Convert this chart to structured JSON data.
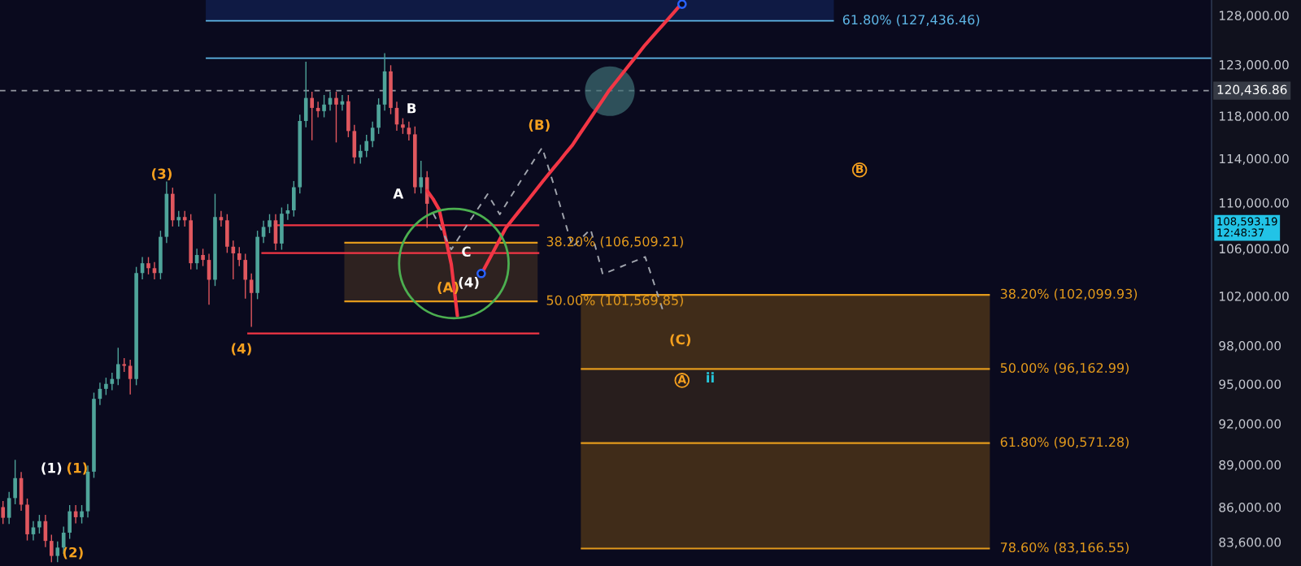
{
  "chart_data": {
    "type": "candlestick",
    "categories": [
      null,
      null,
      null,
      null,
      null,
      null,
      null,
      null,
      null,
      null,
      null,
      null,
      null,
      null,
      null,
      null,
      null,
      null,
      null,
      null,
      null,
      null,
      null,
      null,
      null,
      null,
      null,
      null,
      null,
      null,
      null,
      null,
      null,
      null,
      null,
      null,
      null,
      null,
      null,
      null,
      null,
      null,
      null,
      null,
      null,
      null,
      null,
      null,
      null,
      null,
      null,
      null,
      null,
      null,
      null,
      null,
      null,
      null,
      null,
      null,
      null,
      null,
      null,
      null,
      null,
      null,
      null,
      null,
      null,
      null,
      null,
      null,
      null,
      null,
      null,
      null,
      null,
      null,
      null,
      null,
      null,
      null,
      null,
      null,
      null,
      null,
      null,
      null,
      null,
      null,
      null,
      null,
      null,
      null,
      null,
      null,
      null,
      null,
      null,
      null,
      null,
      null,
      null,
      null,
      null,
      null,
      null,
      null,
      null,
      null,
      null,
      null,
      null,
      null,
      null,
      null,
      null,
      null,
      null,
      null,
      null,
      null,
      null,
      null,
      null,
      null,
      null,
      null,
      null,
      null,
      null,
      null,
      null,
      null,
      null,
      null,
      null,
      null,
      null,
      null,
      null,
      null,
      null,
      null,
      null,
      null,
      null,
      null,
      null,
      null,
      null,
      null,
      null,
      null,
      null,
      null,
      null,
      null,
      null,
      null,
      null,
      null,
      null,
      null,
      null,
      null,
      null,
      null,
      null,
      null,
      null,
      null,
      null,
      null,
      null,
      null,
      null,
      null,
      null,
      null,
      null,
      null,
      null,
      null,
      null,
      null,
      null,
      null,
      null,
      null,
      null,
      null,
      null,
      null,
      null,
      null,
      null,
      null,
      null,
      null
    ],
    "ohlc": [
      [
        86000,
        86430,
        84830,
        85260
      ],
      [
        85260,
        87060,
        84830,
        86630
      ],
      [
        86630,
        89350,
        86200,
        88040
      ],
      [
        88040,
        88480,
        85740,
        86170
      ],
      [
        86170,
        86600,
        83710,
        84130
      ],
      [
        84130,
        85030,
        83710,
        84600
      ],
      [
        84600,
        85460,
        84180,
        85030
      ],
      [
        85030,
        85460,
        83260,
        83680
      ],
      [
        83680,
        84100,
        82250,
        82670
      ],
      [
        82670,
        83650,
        82250,
        83230
      ],
      [
        83230,
        84660,
        82810,
        84240
      ],
      [
        84240,
        86140,
        83820,
        85710
      ],
      [
        85710,
        86140,
        84870,
        85300
      ],
      [
        85300,
        86140,
        84870,
        85710
      ],
      [
        85710,
        88940,
        85280,
        88500
      ],
      [
        88500,
        94340,
        88060,
        93870
      ],
      [
        93870,
        95100,
        93400,
        94630
      ],
      [
        94630,
        95490,
        94160,
        95010
      ],
      [
        95010,
        95870,
        94530,
        95390
      ],
      [
        95390,
        97830,
        94910,
        96540
      ],
      [
        96540,
        97020,
        95930,
        96410
      ],
      [
        96410,
        96890,
        94200,
        95390
      ],
      [
        95390,
        104440,
        94910,
        103920
      ],
      [
        103920,
        105270,
        103400,
        104750
      ],
      [
        104750,
        105270,
        103810,
        104330
      ],
      [
        104330,
        104850,
        103400,
        103920
      ],
      [
        103920,
        107540,
        103400,
        107010
      ],
      [
        107010,
        111900,
        106480,
        110800
      ],
      [
        110800,
        111350,
        107910,
        108450
      ],
      [
        108450,
        109280,
        107910,
        108740
      ],
      [
        108740,
        109280,
        107910,
        108450
      ],
      [
        108450,
        108990,
        104230,
        104750
      ],
      [
        104750,
        105980,
        104230,
        105450
      ],
      [
        105450,
        105980,
        104510,
        105030
      ],
      [
        105030,
        105560,
        101300,
        103360
      ],
      [
        103360,
        110800,
        102840,
        108740
      ],
      [
        108740,
        109280,
        107910,
        108450
      ],
      [
        108450,
        108990,
        105630,
        106160
      ],
      [
        106160,
        106690,
        103400,
        105590
      ],
      [
        105590,
        106120,
        104510,
        105030
      ],
      [
        105030,
        105560,
        101800,
        103360
      ],
      [
        103360,
        103880,
        99500,
        102260
      ],
      [
        102260,
        107540,
        101750,
        107010
      ],
      [
        107010,
        108410,
        106480,
        107870
      ],
      [
        107870,
        108990,
        107330,
        108450
      ],
      [
        108450,
        108990,
        105870,
        106430
      ],
      [
        106430,
        109580,
        105900,
        109030
      ],
      [
        109030,
        109880,
        108480,
        109330
      ],
      [
        109330,
        111950,
        108780,
        111390
      ],
      [
        111390,
        118110,
        110830,
        117520
      ],
      [
        117520,
        123300,
        116930,
        119730
      ],
      [
        119730,
        120330,
        115700,
        118770
      ],
      [
        118770,
        119360,
        117870,
        118460
      ],
      [
        118460,
        120020,
        117870,
        119090
      ],
      [
        119090,
        120330,
        118500,
        119730
      ],
      [
        119730,
        120330,
        115500,
        119090
      ],
      [
        119090,
        120010,
        118500,
        119410
      ],
      [
        119410,
        120010,
        115990,
        116570
      ],
      [
        116570,
        117150,
        113540,
        114110
      ],
      [
        114110,
        115280,
        113540,
        114710
      ],
      [
        114710,
        116210,
        114140,
        115630
      ],
      [
        115630,
        117470,
        115050,
        116880
      ],
      [
        116880,
        119690,
        116300,
        119090
      ],
      [
        119090,
        124140,
        118500,
        122330
      ],
      [
        122330,
        122940,
        118170,
        118770
      ],
      [
        118770,
        119360,
        116600,
        117190
      ],
      [
        117190,
        117780,
        116300,
        116880
      ],
      [
        116880,
        117470,
        115680,
        116260
      ],
      [
        116260,
        117000,
        110830,
        111390
      ],
      [
        111390,
        113800,
        110830,
        112290
      ],
      [
        112290,
        112850,
        107800,
        109910
      ],
      null,
      null,
      null,
      null,
      null,
      null,
      null,
      null,
      null,
      null,
      null,
      null,
      null,
      null,
      null,
      null,
      null,
      null,
      null,
      null,
      null,
      null,
      null,
      null,
      null,
      null,
      null,
      null,
      null,
      null,
      null,
      null,
      null,
      null,
      null,
      null,
      null,
      null,
      null,
      null,
      null,
      null,
      null,
      null,
      null,
      null,
      null,
      null,
      null,
      null,
      null,
      null,
      null,
      null,
      null,
      null,
      null,
      null,
      null,
      null,
      null,
      null,
      null,
      null,
      null,
      null,
      null,
      null,
      null,
      null,
      null,
      null,
      null,
      null,
      null,
      null,
      null,
      null,
      null,
      null,
      null,
      null,
      null,
      null,
      null,
      null,
      null,
      null,
      null,
      null,
      null,
      null,
      null,
      null,
      null,
      null,
      null,
      null,
      null,
      null,
      null,
      null,
      null,
      null,
      null,
      null,
      null,
      null,
      null,
      null,
      null,
      null,
      null,
      null,
      null,
      null,
      null,
      null,
      null,
      null,
      null,
      null,
      null,
      null,
      null,
      null,
      null,
      null,
      null
    ],
    "colors": [
      "#e0575e",
      "#4fa49a",
      "#4fa49a",
      "#e0575e",
      "#e0575e",
      "#4fa49a",
      "#4fa49a",
      "#e0575e",
      "#e0575e",
      "#4fa49a",
      "#4fa49a",
      "#4fa49a",
      "#e0575e",
      "#4fa49a",
      "#4fa49a",
      "#4fa49a",
      "#4fa49a",
      "#4fa49a",
      "#4fa49a",
      "#4fa49a",
      "#e0575e",
      "#e0575e",
      "#4fa49a",
      "#4fa49a",
      "#e0575e",
      "#e0575e",
      "#4fa49a",
      "#4fa49a",
      "#e0575e",
      "#4fa49a",
      "#e0575e",
      "#e0575e",
      "#4fa49a",
      "#e0575e",
      "#e0575e",
      "#4fa49a",
      "#e0575e",
      "#e0575e",
      "#e0575e",
      "#e0575e",
      "#e0575e",
      "#e0575e",
      "#4fa49a",
      "#4fa49a",
      "#4fa49a",
      "#e0575e",
      "#4fa49a",
      "#4fa49a",
      "#4fa49a",
      "#4fa49a",
      "#4fa49a",
      "#e0575e",
      "#e0575e",
      "#4fa49a",
      "#4fa49a",
      "#e0575e",
      "#4fa49a",
      "#e0575e",
      "#e0575e",
      "#4fa49a",
      "#4fa49a",
      "#4fa49a",
      "#4fa49a",
      "#4fa49a",
      "#e0575e",
      "#e0575e",
      "#e0575e",
      "#e0575e",
      "#e0575e",
      "#4fa49a",
      "#e0575e",
      null,
      null,
      null,
      null,
      null,
      null,
      null,
      null,
      null,
      null,
      null,
      null,
      null,
      null,
      null,
      null,
      null,
      null,
      null,
      null,
      null,
      null,
      null,
      null,
      null,
      null,
      null,
      null,
      null,
      null,
      null,
      null,
      null,
      null,
      null,
      null,
      null,
      null,
      null,
      null,
      null,
      null,
      null,
      null,
      null,
      null,
      null,
      null,
      null,
      null,
      null,
      null,
      null,
      null,
      null,
      null,
      null,
      null,
      null,
      null,
      null,
      null,
      null,
      null,
      null,
      null,
      null,
      null,
      null,
      null,
      null,
      null,
      null,
      null,
      null,
      null,
      null,
      null,
      null,
      null,
      null,
      null,
      null,
      null,
      null,
      null,
      null,
      null,
      null,
      null,
      null,
      null,
      null,
      null,
      null,
      null,
      null,
      null,
      null,
      null,
      null,
      null,
      null,
      null,
      null,
      null,
      null,
      null,
      null,
      null,
      null,
      null,
      null,
      null,
      null,
      null,
      null,
      null,
      null,
      null,
      null,
      null,
      null,
      null,
      null,
      null,
      null,
      null,
      null
    ],
    "series": [
      {
        "type": "line",
        "color": "#f23645",
        "line_style": "solid",
        "values": [
          null,
          null,
          null,
          null,
          null,
          null,
          null,
          null,
          null,
          null,
          null,
          null,
          null,
          null,
          null,
          null,
          null,
          null,
          null,
          null,
          null,
          null,
          null,
          null,
          null,
          null,
          null,
          null,
          null,
          null,
          null,
          null,
          null,
          null,
          null,
          null,
          null,
          null,
          null,
          null,
          null,
          null,
          null,
          null,
          null,
          null,
          null,
          null,
          null,
          null,
          null,
          null,
          null,
          null,
          null,
          null,
          null,
          null,
          null,
          null,
          null,
          null,
          null,
          null,
          null,
          null,
          null,
          null,
          null,
          null,
          111090,
          110330,
          109390,
          107060,
          104660,
          100400,
          null,
          null,
          null,
          null,
          null,
          null,
          null,
          null,
          null,
          null,
          null,
          null,
          null,
          null,
          null,
          null,
          null,
          null,
          null,
          null,
          null,
          null,
          null,
          null,
          null,
          null,
          null,
          null,
          null,
          null,
          null,
          null,
          null,
          null,
          null,
          null,
          null,
          null,
          null,
          null,
          null,
          null,
          null,
          null,
          null,
          null,
          null,
          null,
          null,
          null,
          null,
          null,
          null,
          null,
          null,
          null,
          null,
          null,
          null,
          null,
          null,
          null,
          null,
          null,
          null,
          null,
          null,
          null,
          null,
          null,
          null,
          null,
          null,
          null,
          null,
          null,
          null,
          null,
          null,
          null,
          null,
          null,
          null,
          null,
          null,
          null,
          null,
          null,
          null,
          null,
          null,
          null,
          null,
          null,
          null,
          null,
          null,
          null,
          null,
          null,
          null,
          null,
          null,
          null,
          null,
          null,
          null,
          null,
          null,
          null,
          null,
          null,
          null,
          null,
          null,
          null,
          null,
          null,
          null,
          null,
          null,
          null,
          null,
          null
        ]
      },
      {
        "type": "line",
        "color": "#f23645",
        "line_style": "solid",
        "values": [
          null,
          null,
          null,
          null,
          null,
          null,
          null,
          null,
          null,
          null,
          null,
          null,
          null,
          null,
          null,
          null,
          null,
          null,
          null,
          null,
          null,
          null,
          null,
          null,
          null,
          null,
          null,
          null,
          null,
          null,
          null,
          null,
          null,
          null,
          null,
          null,
          null,
          null,
          null,
          null,
          null,
          null,
          null,
          null,
          null,
          null,
          null,
          null,
          null,
          null,
          null,
          null,
          null,
          null,
          null,
          null,
          null,
          null,
          null,
          null,
          null,
          null,
          null,
          null,
          null,
          null,
          null,
          null,
          null,
          null,
          null,
          null,
          null,
          null,
          null,
          null,
          null,
          null,
          null,
          103870,
          104830,
          105800,
          106790,
          107780,
          108450,
          109120,
          109790,
          110470,
          111160,
          111850,
          112530,
          113210,
          113870,
          114580,
          115260,
          116120,
          116960,
          117810,
          118680,
          119530,
          120420,
          121170,
          121920,
          122680,
          123440,
          124210,
          124980,
          125670,
          126370,
          127070,
          127770,
          128490,
          129220,
          null,
          null,
          null,
          null,
          null,
          null,
          null,
          null,
          null,
          null,
          null,
          null,
          null,
          null,
          null,
          null,
          null,
          null,
          null,
          null,
          null,
          null,
          null,
          null,
          null,
          null,
          null,
          null,
          null,
          null,
          null,
          null,
          null,
          null,
          null,
          null,
          null,
          null,
          null,
          null,
          null,
          null,
          null,
          null,
          null,
          null,
          null,
          null,
          null,
          null,
          null,
          null,
          null,
          null,
          null,
          null,
          null,
          null,
          null,
          null,
          null,
          null,
          null,
          null,
          null,
          null,
          null,
          null,
          null,
          null,
          null,
          null,
          null,
          null,
          null,
          null,
          null,
          null,
          null,
          null,
          null,
          null,
          null,
          null,
          null,
          null,
          null
        ]
      },
      {
        "type": "line",
        "color": "#a0a4ad",
        "line_style": "dashed",
        "values": [
          null,
          null,
          null,
          null,
          null,
          null,
          null,
          null,
          null,
          null,
          null,
          null,
          null,
          null,
          null,
          null,
          null,
          null,
          null,
          null,
          null,
          null,
          null,
          null,
          null,
          null,
          null,
          null,
          null,
          null,
          null,
          null,
          null,
          null,
          null,
          null,
          null,
          null,
          null,
          null,
          null,
          null,
          null,
          null,
          null,
          null,
          null,
          null,
          null,
          null,
          null,
          null,
          null,
          null,
          null,
          null,
          null,
          null,
          null,
          null,
          null,
          null,
          null,
          null,
          null,
          null,
          null,
          null,
          null,
          null,
          null,
          109070,
          108020,
          106970,
          105920,
          106730,
          107540,
          108350,
          109150,
          109960,
          110770,
          109870,
          108970,
          109840,
          110700,
          111560,
          112430,
          113290,
          114160,
          115020,
          113240,
          111460,
          109690,
          107910,
          106130,
          106640,
          107160,
          107670,
          105750,
          103820,
          104030,
          104240,
          104450,
          104660,
          104870,
          105080,
          105290,
          103760,
          102240,
          100710,
          null,
          null,
          null,
          null,
          null,
          null,
          null,
          null,
          null,
          null,
          null,
          null,
          null,
          null,
          null,
          null,
          null,
          null,
          null,
          null,
          null,
          null,
          null,
          null,
          null,
          null,
          null,
          null,
          null,
          null,
          null,
          null,
          null,
          null,
          null,
          null,
          null,
          null,
          null,
          null,
          null,
          null,
          null,
          null,
          null,
          null,
          null,
          null,
          null,
          null,
          null,
          null,
          null,
          null,
          null,
          null,
          null,
          null,
          null,
          null,
          null,
          null,
          null,
          null,
          null,
          null,
          null,
          null,
          null,
          null,
          null,
          null,
          null,
          null,
          null,
          null,
          null,
          null,
          null,
          null,
          null,
          null,
          null,
          null,
          null,
          null,
          null,
          null,
          null,
          null
        ]
      }
    ],
    "log": "y",
    "ylim": [
      82000,
      129600
    ],
    "yticks": [
      {
        "value": 83600,
        "label": "83,600.00"
      },
      {
        "value": 86000,
        "label": "86,000.00"
      },
      {
        "value": 89000,
        "label": "89,000.00"
      },
      {
        "value": 92000,
        "label": "92,000.00"
      },
      {
        "value": 95000,
        "label": "95,000.00"
      },
      {
        "value": 98000,
        "label": "98,000.00"
      },
      {
        "value": 102000,
        "label": "102,000.00"
      },
      {
        "value": 106000,
        "label": "106,000.00"
      },
      {
        "value": 110000,
        "label": "110,000.00"
      },
      {
        "value": 114000,
        "label": "114,000.00"
      },
      {
        "value": 118000,
        "label": "118,000.00"
      },
      {
        "value": 123000,
        "label": "123,000.00"
      },
      {
        "value": 128000,
        "label": "128,000.00"
      }
    ],
    "tick_labels": "y",
    "ref_lines": [
      {
        "axis": "y",
        "value": 127436.46,
        "label": "61.80% (127,436.46)",
        "color": "#5fb8e8",
        "line_style": "solid"
      },
      {
        "axis": "y",
        "value": 123640,
        "color": "#5fb8e8",
        "line_style": "solid"
      },
      {
        "axis": "y",
        "value": 120436.86,
        "label": "120,436.86",
        "color": "#9598a1",
        "line_style": "dashed"
      },
      {
        "axis": "y",
        "value": 108010,
        "color": "#f23645",
        "line_style": "solid"
      },
      {
        "axis": "y",
        "value": 105620,
        "color": "#f23645",
        "line_style": "solid"
      },
      {
        "axis": "y",
        "value": 98970,
        "color": "#f23645",
        "line_style": "solid"
      },
      {
        "axis": "y",
        "value": 106509.21,
        "label": "38.20% (106,509.21)",
        "color": "#e39a1c",
        "line_style": "solid"
      },
      {
        "axis": "y",
        "value": 101569.85,
        "label": "50.00% (101,569.85)",
        "color": "#e39a1c",
        "line_style": "solid"
      },
      {
        "axis": "y",
        "value": 102099.93,
        "label": "38.20% (102,099.93)",
        "color": "#e39a1c",
        "line_style": "solid"
      },
      {
        "axis": "y",
        "value": 96162.99,
        "label": "50.00% (96,162.99)",
        "color": "#e39a1c",
        "line_style": "solid"
      },
      {
        "axis": "y",
        "value": 90571.28,
        "label": "61.80% (90,571.28)",
        "color": "#e39a1c",
        "line_style": "solid"
      },
      {
        "axis": "y",
        "value": 83166.55,
        "label": "78.60% (83,166.55)",
        "color": "#e39a1c",
        "line_style": "solid"
      }
    ],
    "bands": [
      {
        "axis": "y",
        "from": 127436.46,
        "to": 129600,
        "color": "#0f1a44"
      },
      {
        "axis": "y",
        "from": 101569.85,
        "to": 106509.21,
        "color": "#2e2220"
      },
      {
        "axis": "y",
        "from": 96162.99,
        "to": 102099.93,
        "color": "#402c19"
      },
      {
        "axis": "y",
        "from": 90571.28,
        "to": 96162.99,
        "color": "#281e1d"
      },
      {
        "axis": "y",
        "from": 83166.55,
        "to": 90571.28,
        "color": "#402c19"
      }
    ],
    "annotations": [
      "(3)",
      "(4)",
      "(1)",
      "(1)",
      "(2)",
      "B",
      "A",
      "C",
      "(A)",
      "(4)",
      "(B)",
      "(C)",
      "A",
      "ii",
      "B",
      "108,593.19\n12:48:37"
    ]
  }
}
